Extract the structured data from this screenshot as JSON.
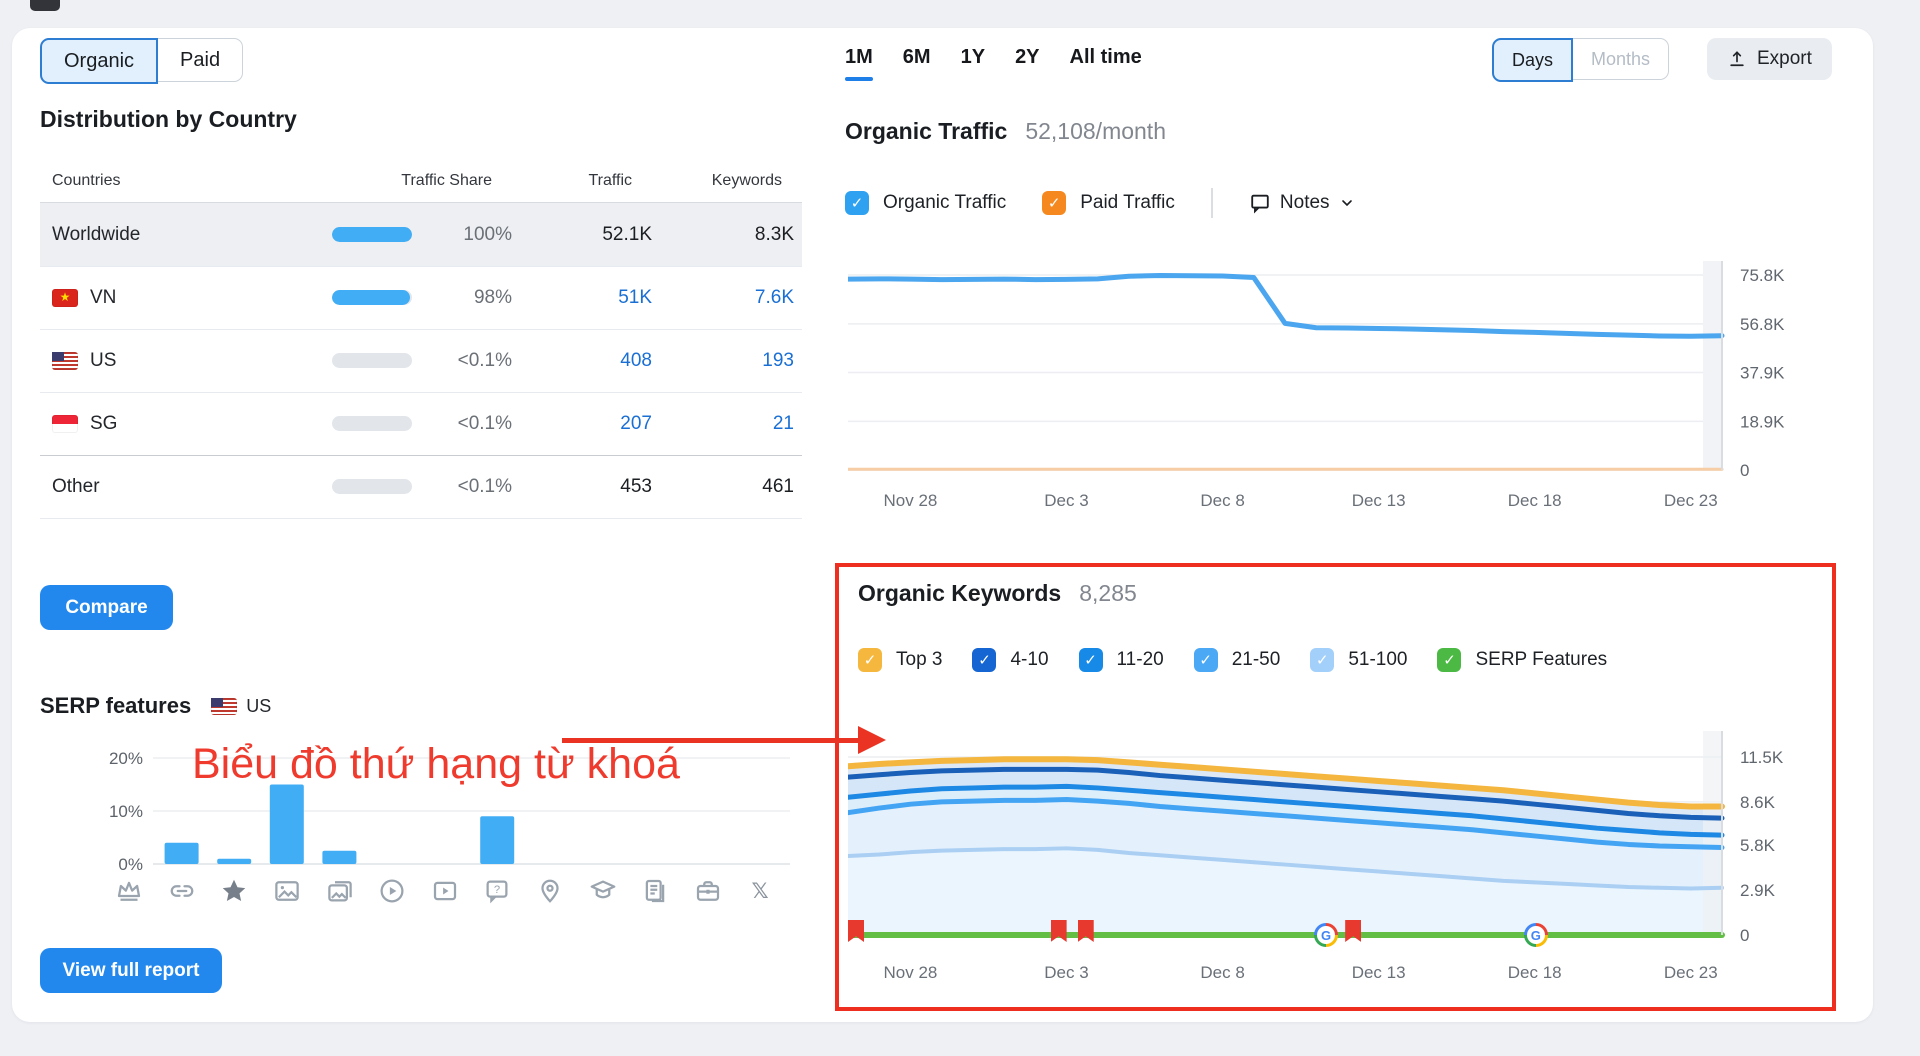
{
  "colors": {
    "accent_blue": "#2288ee",
    "line_blue": "#4ba6ef",
    "paid_peach": "#f6cda4",
    "bar_blue": "#41adf5",
    "link_blue": "#1a6fd4",
    "green": "#63be45",
    "annotation_red": "#ee2e1f"
  },
  "left": {
    "toggle": {
      "organic": "Organic",
      "paid": "Paid"
    },
    "country_section": {
      "title": "Distribution by Country",
      "headers": {
        "countries": "Countries",
        "share": "Traffic Share",
        "traffic": "Traffic",
        "keywords": "Keywords"
      },
      "rows": [
        {
          "name": "Worldwide",
          "flag": "",
          "share_label": "100%",
          "fill": 100,
          "traffic": "52.1K",
          "keywords": "8.3K"
        },
        {
          "name": "VN",
          "flag": "vn",
          "share_label": "98%",
          "fill": 98,
          "traffic": "51K",
          "keywords": "7.6K"
        },
        {
          "name": "US",
          "flag": "us",
          "share_label": "<0.1%",
          "fill": 0,
          "traffic": "408",
          "keywords": "193"
        },
        {
          "name": "SG",
          "flag": "sg",
          "share_label": "<0.1%",
          "fill": 0,
          "traffic": "207",
          "keywords": "21"
        },
        {
          "name": "Other",
          "flag": "",
          "share_label": "<0.1%",
          "fill": 0,
          "traffic": "453",
          "keywords": "461"
        }
      ]
    },
    "compare_label": "Compare",
    "serp_section": {
      "title": "SERP features",
      "region": "US"
    },
    "view_report_label": "View full report"
  },
  "header": {
    "ranges": [
      "1M",
      "6M",
      "1Y",
      "2Y",
      "All time"
    ],
    "active_range": "1M",
    "granularity": {
      "days": "Days",
      "months": "Months"
    },
    "export_label": "Export"
  },
  "traffic_section": {
    "title": "Organic Traffic",
    "subtitle": "52,108/month",
    "legend": [
      {
        "label": "Organic Traffic",
        "color": "#2ea1f0"
      },
      {
        "label": "Paid Traffic",
        "color": "#f5891f"
      }
    ],
    "notes_label": "Notes"
  },
  "keywords_section": {
    "title": "Organic Keywords",
    "subtitle": "8,285",
    "legend": [
      {
        "label": "Top 3",
        "color": "#f5b73d"
      },
      {
        "label": "4-10",
        "color": "#1565d2"
      },
      {
        "label": "11-20",
        "color": "#1789e6"
      },
      {
        "label": "21-50",
        "color": "#4aa8f5"
      },
      {
        "label": "51-100",
        "color": "#a3d0fa"
      },
      {
        "label": "SERP Features",
        "color": "#4cb944"
      }
    ]
  },
  "annotation": {
    "text": "Biểu đồ thứ hạng từ khoá"
  },
  "chart_data": [
    {
      "type": "line",
      "title": "Organic Traffic",
      "ylabel": "traffic",
      "x_range": [
        "Nov 26",
        "Dec 24"
      ],
      "x_labels": [
        "Nov 28",
        "Dec 3",
        "Dec 8",
        "Dec 13",
        "Dec 18",
        "Dec 23"
      ],
      "x_label_positions": [
        2,
        7,
        12,
        17,
        22,
        27
      ],
      "yticks": [
        75800,
        56800,
        37900,
        18900,
        0
      ],
      "ytick_labels": [
        "75.8K",
        "56.8K",
        "37.9K",
        "18.9K",
        "0"
      ],
      "ylim": [
        0,
        82000
      ],
      "grid": true,
      "series": [
        {
          "name": "Paid Traffic",
          "color": "#f6cda4",
          "width": 3,
          "values": [
            300,
            300,
            300,
            300,
            300,
            300,
            300,
            300,
            300,
            300,
            300,
            300,
            300,
            300,
            300,
            300,
            300,
            300,
            300,
            300,
            300,
            300,
            300,
            300,
            300,
            300,
            300,
            300,
            300
          ]
        },
        {
          "name": "Organic Traffic",
          "color": "#4ba6ef",
          "width": 5,
          "values": [
            74200,
            74300,
            74200,
            74000,
            74100,
            74200,
            74000,
            74100,
            74300,
            75300,
            75600,
            75500,
            75400,
            74800,
            57000,
            55300,
            55200,
            55000,
            54800,
            54500,
            54200,
            53800,
            53500,
            53100,
            52700,
            52400,
            52100,
            52000,
            52200
          ]
        }
      ]
    },
    {
      "type": "area",
      "title": "Organic Keywords positions",
      "x_range": [
        "Nov 26",
        "Dec 24"
      ],
      "x_labels": [
        "Nov 28",
        "Dec 3",
        "Dec 8",
        "Dec 13",
        "Dec 18",
        "Dec 23"
      ],
      "x_label_positions": [
        2,
        7,
        12,
        17,
        22,
        27
      ],
      "yticks": [
        11500,
        8600,
        5800,
        2900,
        0
      ],
      "ytick_labels": [
        "11.5K",
        "8.6K",
        "5.8K",
        "2.9K",
        "0"
      ],
      "ylim": [
        0,
        12600
      ],
      "grid": true,
      "series": [
        {
          "name": "Top 3",
          "color": "#f4b63e",
          "fill": "#dce8f6",
          "width": 6,
          "values": [
            10900,
            11050,
            11150,
            11250,
            11300,
            11350,
            11350,
            11350,
            11300,
            11150,
            11000,
            10850,
            10700,
            10550,
            10400,
            10250,
            10100,
            9950,
            9800,
            9650,
            9500,
            9350,
            9150,
            8950,
            8750,
            8550,
            8400,
            8300,
            8300
          ]
        },
        {
          "name": "4-10",
          "color": "#1a5fb8",
          "fill": "#d5e6f9",
          "width": 5,
          "values": [
            10200,
            10350,
            10500,
            10600,
            10650,
            10700,
            10700,
            10700,
            10650,
            10500,
            10300,
            10150,
            10000,
            9850,
            9700,
            9550,
            9400,
            9250,
            9100,
            8950,
            8800,
            8650,
            8450,
            8250,
            8050,
            7850,
            7700,
            7600,
            7550
          ]
        },
        {
          "name": "11-20",
          "color": "#1e88e5",
          "fill": "#ddeefb",
          "width": 5,
          "values": [
            8900,
            9100,
            9300,
            9450,
            9500,
            9550,
            9550,
            9600,
            9500,
            9350,
            9200,
            9050,
            8900,
            8750,
            8600,
            8450,
            8300,
            8150,
            8000,
            7850,
            7700,
            7500,
            7300,
            7100,
            6900,
            6750,
            6600,
            6500,
            6450
          ]
        },
        {
          "name": "21-50",
          "color": "#44a4f4",
          "fill": "#e4f1fd",
          "width": 5,
          "values": [
            7900,
            8200,
            8450,
            8600,
            8650,
            8700,
            8700,
            8750,
            8650,
            8500,
            8300,
            8150,
            8000,
            7850,
            7700,
            7550,
            7400,
            7250,
            7100,
            6950,
            6800,
            6600,
            6400,
            6200,
            6000,
            5850,
            5750,
            5700,
            5650
          ]
        },
        {
          "name": "51-100",
          "color": "#aacff3",
          "fill": "#eaf5fe",
          "width": 4,
          "values": [
            5100,
            5200,
            5350,
            5450,
            5500,
            5550,
            5550,
            5600,
            5500,
            5300,
            5150,
            5000,
            4850,
            4700,
            4550,
            4400,
            4250,
            4100,
            3950,
            3800,
            3650,
            3500,
            3400,
            3300,
            3200,
            3100,
            3050,
            3000,
            3050
          ]
        }
      ],
      "events": {
        "line_name": "SERP Features timeline",
        "line_color": "#63be45",
        "flag_positions": [
          0.0,
          0.241,
          0.272,
          0.578
        ],
        "google_update_positions": [
          0.547,
          0.787
        ]
      }
    },
    {
      "type": "bar",
      "title": "SERP features share",
      "categories": [
        "crown",
        "link",
        "star",
        "image",
        "image-pack",
        "play-circle",
        "featured-video",
        "faq",
        "local-pack",
        "knowledge-panel",
        "sitelinks",
        "jobs",
        "x-twitter"
      ],
      "values": [
        0,
        4,
        1,
        15,
        2.5,
        0,
        0,
        9,
        0,
        0,
        0,
        0,
        0
      ],
      "unit": "%",
      "yticks": [
        20,
        10,
        0
      ],
      "ytick_labels": [
        "20%",
        "10%",
        "0%"
      ],
      "ylim": [
        0,
        22
      ],
      "grid": true,
      "bar_color": "#41adf5"
    }
  ]
}
